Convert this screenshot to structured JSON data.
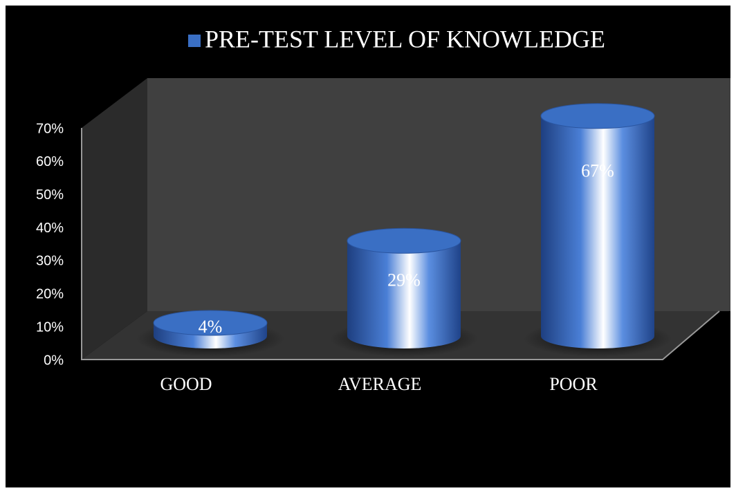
{
  "chart_data": {
    "type": "bar",
    "categories": [
      "GOOD",
      "AVERAGE",
      "POOR"
    ],
    "series": [
      {
        "name": "PRE-TEST LEVEL OF KNOWLEDGE",
        "color": "#3a6fc4",
        "values": [
          4,
          29,
          67
        ],
        "value_labels": [
          "4%",
          "29%",
          "67%"
        ]
      }
    ],
    "ylim": [
      0,
      70
    ],
    "yticks": [
      {
        "value": 0,
        "label": "0%"
      },
      {
        "value": 10,
        "label": "10%"
      },
      {
        "value": 20,
        "label": "20%"
      },
      {
        "value": 30,
        "label": "30%"
      },
      {
        "value": 40,
        "label": "40%"
      },
      {
        "value": 50,
        "label": "50%"
      },
      {
        "value": 60,
        "label": "60%"
      },
      {
        "value": 70,
        "label": "70%"
      }
    ]
  }
}
